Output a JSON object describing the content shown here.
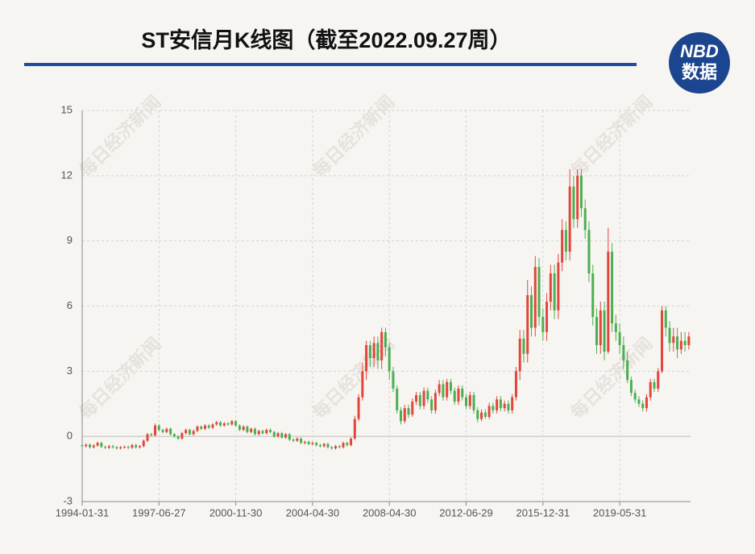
{
  "chart_data": {
    "type": "candlestick",
    "title": "ST安信月K线图（截至2022.09.27周）",
    "watermark": "每日经济新闻",
    "logo": {
      "mark": "NBD",
      "label": "数据"
    },
    "up_color": "#e2453c",
    "down_color": "#4caf50",
    "grid": true,
    "ylim": [
      -3,
      15
    ],
    "yticks": [
      -3,
      0,
      3,
      6,
      9,
      12,
      15
    ],
    "categories": [
      "1994-01-31",
      null,
      null,
      null,
      null,
      null,
      null,
      null,
      null,
      null,
      null,
      null,
      null,
      null,
      null,
      null,
      null,
      null,
      null,
      null,
      "1997-06-27",
      null,
      null,
      null,
      null,
      null,
      null,
      null,
      null,
      null,
      null,
      null,
      null,
      null,
      null,
      null,
      null,
      null,
      null,
      null,
      "2000-11-30",
      null,
      null,
      null,
      null,
      null,
      null,
      null,
      null,
      null,
      null,
      null,
      null,
      null,
      null,
      null,
      null,
      null,
      null,
      null,
      "2004-04-30",
      null,
      null,
      null,
      null,
      null,
      null,
      null,
      null,
      null,
      null,
      null,
      null,
      null,
      null,
      null,
      null,
      null,
      null,
      null,
      "2008-04-30",
      null,
      null,
      null,
      null,
      null,
      null,
      null,
      null,
      null,
      null,
      null,
      null,
      null,
      null,
      null,
      null,
      null,
      null,
      null,
      "2012-06-29",
      null,
      null,
      null,
      null,
      null,
      null,
      null,
      null,
      null,
      null,
      null,
      null,
      null,
      null,
      null,
      null,
      null,
      null,
      null,
      "2015-12-31",
      null,
      null,
      null,
      null,
      null,
      null,
      null,
      null,
      null,
      null,
      null,
      null,
      null,
      null,
      null,
      null,
      null,
      null,
      null,
      "2019-05-31",
      null,
      null,
      null,
      null,
      null,
      null,
      null,
      null,
      null,
      null,
      null,
      null,
      null,
      null,
      null,
      null,
      null,
      null
    ],
    "open": [
      -0.4,
      -0.45,
      -0.38,
      -0.5,
      -0.42,
      -0.3,
      -0.48,
      -0.52,
      -0.45,
      -0.5,
      -0.55,
      -0.5,
      -0.48,
      -0.52,
      -0.4,
      -0.5,
      -0.45,
      -0.2,
      0.1,
      0.05,
      0.5,
      0.3,
      0.2,
      0.35,
      0.1,
      0.0,
      -0.1,
      0.15,
      0.3,
      0.1,
      0.25,
      0.45,
      0.35,
      0.5,
      0.4,
      0.55,
      0.65,
      0.5,
      0.6,
      0.55,
      0.7,
      0.5,
      0.3,
      0.45,
      0.2,
      0.35,
      0.1,
      0.25,
      0.15,
      0.3,
      0.2,
      0.0,
      0.15,
      -0.05,
      0.1,
      -0.15,
      -0.2,
      -0.1,
      -0.3,
      -0.25,
      -0.35,
      -0.3,
      -0.4,
      -0.45,
      -0.35,
      -0.5,
      -0.55,
      -0.45,
      -0.5,
      -0.3,
      -0.4,
      -0.1,
      0.8,
      1.8,
      3.0,
      4.2,
      3.6,
      4.3,
      3.5,
      4.8,
      4.1,
      3.0,
      2.2,
      1.2,
      0.7,
      1.3,
      1.0,
      1.6,
      1.9,
      1.4,
      2.1,
      1.7,
      1.2,
      2.0,
      2.4,
      1.8,
      2.5,
      2.1,
      1.6,
      2.2,
      1.8,
      1.4,
      1.9,
      1.2,
      0.8,
      1.1,
      0.9,
      1.4,
      1.2,
      1.7,
      1.3,
      1.5,
      1.2,
      1.8,
      3.0,
      4.5,
      3.8,
      6.5,
      5.0,
      7.8,
      5.5,
      4.8,
      6.2,
      7.5,
      5.8,
      8.0,
      9.5,
      8.5,
      11.5,
      10.0,
      12.0,
      10.5,
      9.5,
      7.5,
      5.5,
      4.2,
      5.8,
      3.9,
      8.5,
      5.2,
      4.8,
      4.2,
      3.5,
      2.6,
      2.0,
      1.7,
      1.5,
      1.3,
      1.8,
      2.5,
      2.2,
      3.0,
      5.8,
      5.0,
      4.3,
      4.6,
      4.0,
      4.4,
      4.2
    ],
    "close": [
      -0.45,
      -0.38,
      -0.5,
      -0.42,
      -0.3,
      -0.48,
      -0.52,
      -0.45,
      -0.5,
      -0.55,
      -0.5,
      -0.48,
      -0.52,
      -0.4,
      -0.5,
      -0.45,
      -0.2,
      0.1,
      0.05,
      0.5,
      0.3,
      0.2,
      0.35,
      0.1,
      0.0,
      -0.1,
      0.15,
      0.3,
      0.1,
      0.25,
      0.45,
      0.35,
      0.5,
      0.4,
      0.55,
      0.65,
      0.5,
      0.6,
      0.55,
      0.7,
      0.5,
      0.3,
      0.45,
      0.2,
      0.35,
      0.1,
      0.25,
      0.15,
      0.3,
      0.2,
      0.0,
      0.15,
      -0.05,
      0.1,
      -0.15,
      -0.2,
      -0.1,
      -0.3,
      -0.25,
      -0.35,
      -0.3,
      -0.4,
      -0.45,
      -0.35,
      -0.5,
      -0.55,
      -0.45,
      -0.5,
      -0.3,
      -0.4,
      -0.1,
      0.8,
      1.8,
      3.0,
      4.2,
      3.6,
      4.3,
      3.5,
      4.8,
      4.1,
      3.0,
      2.2,
      1.2,
      0.7,
      1.3,
      1.0,
      1.6,
      1.9,
      1.4,
      2.1,
      1.7,
      1.2,
      2.0,
      2.4,
      1.8,
      2.5,
      2.1,
      1.6,
      2.2,
      1.8,
      1.4,
      1.9,
      1.2,
      0.8,
      1.1,
      0.9,
      1.4,
      1.2,
      1.7,
      1.3,
      1.5,
      1.2,
      1.8,
      3.0,
      4.5,
      3.8,
      6.5,
      5.0,
      7.8,
      5.5,
      4.8,
      6.2,
      7.5,
      5.8,
      8.0,
      9.5,
      8.5,
      11.5,
      10.0,
      12.0,
      10.5,
      9.5,
      7.5,
      5.5,
      4.2,
      5.8,
      3.9,
      8.5,
      5.2,
      4.8,
      4.2,
      3.5,
      2.6,
      2.0,
      1.7,
      1.5,
      1.3,
      1.8,
      2.5,
      2.2,
      3.0,
      5.8,
      5.0,
      4.3,
      4.6,
      4.0,
      4.4,
      4.2,
      4.6
    ],
    "low": [
      -0.51,
      -0.51,
      -0.56,
      -0.56,
      -0.48,
      -0.54,
      -0.58,
      -0.58,
      -0.56,
      -0.61,
      -0.61,
      -0.56,
      -0.58,
      -0.58,
      -0.56,
      -0.56,
      -0.51,
      -0.26,
      -0.01,
      -0.01,
      0.24,
      0.14,
      0.14,
      0.04,
      -0.06,
      -0.16,
      -0.16,
      0.09,
      0.04,
      0.04,
      0.19,
      0.29,
      0.29,
      0.34,
      0.34,
      0.49,
      0.44,
      0.44,
      0.49,
      0.49,
      0.44,
      0.24,
      0.24,
      0.14,
      0.14,
      0.04,
      0.04,
      0.09,
      0.09,
      0.14,
      -0.06,
      -0.06,
      -0.11,
      -0.11,
      -0.21,
      -0.26,
      -0.26,
      -0.36,
      -0.36,
      -0.41,
      -0.41,
      -0.46,
      -0.51,
      -0.51,
      -0.56,
      -0.61,
      -0.61,
      -0.56,
      -0.56,
      -0.46,
      -0.46,
      -0.16,
      0.7,
      1.65,
      2.6,
      3.2,
      3.2,
      3.1,
      3.1,
      3.7,
      2.6,
      2.05,
      1.05,
      0.55,
      0.6,
      0.85,
      0.9,
      1.45,
      1.25,
      1.25,
      1.55,
      1.05,
      1.05,
      1.85,
      1.65,
      1.65,
      1.95,
      1.45,
      1.45,
      1.65,
      1.25,
      1.25,
      1.05,
      0.65,
      0.7,
      0.8,
      0.8,
      1.05,
      1.05,
      1.15,
      1.15,
      1.05,
      1.05,
      1.65,
      2.6,
      3.4,
      3.4,
      4.6,
      4.6,
      5.1,
      4.4,
      4.4,
      5.8,
      5.4,
      5.4,
      7.6,
      8.1,
      8.1,
      9.6,
      9.6,
      10.1,
      9.1,
      7.1,
      5.1,
      3.8,
      3.8,
      3.5,
      3.8,
      4.8,
      4.4,
      3.8,
      3.1,
      2.45,
      1.85,
      1.55,
      1.35,
      1.15,
      1.15,
      1.65,
      2.05,
      2.05,
      2.9,
      4.6,
      3.9,
      3.9,
      3.6,
      3.8,
      3.9,
      4.0
    ],
    "high": [
      -0.34,
      -0.32,
      -0.32,
      -0.36,
      -0.24,
      -0.24,
      -0.42,
      -0.39,
      -0.39,
      -0.44,
      -0.44,
      -0.42,
      -0.42,
      -0.34,
      -0.34,
      -0.39,
      -0.14,
      0.16,
      0.16,
      0.6,
      0.56,
      0.36,
      0.41,
      0.41,
      0.16,
      0.06,
      0.21,
      0.36,
      0.36,
      0.31,
      0.51,
      0.51,
      0.56,
      0.56,
      0.61,
      0.71,
      0.71,
      0.66,
      0.66,
      0.76,
      0.76,
      0.56,
      0.51,
      0.51,
      0.41,
      0.41,
      0.31,
      0.31,
      0.36,
      0.36,
      0.26,
      0.21,
      0.21,
      0.16,
      0.16,
      -0.09,
      -0.04,
      -0.04,
      -0.19,
      -0.19,
      -0.24,
      -0.24,
      -0.34,
      -0.29,
      -0.29,
      -0.44,
      -0.39,
      -0.39,
      -0.24,
      -0.24,
      -0.04,
      0.95,
      1.95,
      3.4,
      4.4,
      4.4,
      4.6,
      4.6,
      5.0,
      5.0,
      4.3,
      3.2,
      2.35,
      1.35,
      1.45,
      1.45,
      1.75,
      2.05,
      2.05,
      2.25,
      2.25,
      1.85,
      2.15,
      2.6,
      2.6,
      2.65,
      2.65,
      2.25,
      2.35,
      2.35,
      1.95,
      2.05,
      2.05,
      1.35,
      1.25,
      1.25,
      1.55,
      1.55,
      1.85,
      1.85,
      1.65,
      1.65,
      1.95,
      3.2,
      4.9,
      4.9,
      7.2,
      6.9,
      8.3,
      8.2,
      5.9,
      6.6,
      7.9,
      7.9,
      8.4,
      10.0,
      9.9,
      12.3,
      12.0,
      12.3,
      12.3,
      10.9,
      9.9,
      7.9,
      5.9,
      6.2,
      6.2,
      9.6,
      8.9,
      5.6,
      5.2,
      4.6,
      3.9,
      2.75,
      2.15,
      1.85,
      1.65,
      1.95,
      2.65,
      2.65,
      3.15,
      6.0,
      6.0,
      5.3,
      5.0,
      5.0,
      4.8,
      4.8,
      4.8
    ]
  }
}
